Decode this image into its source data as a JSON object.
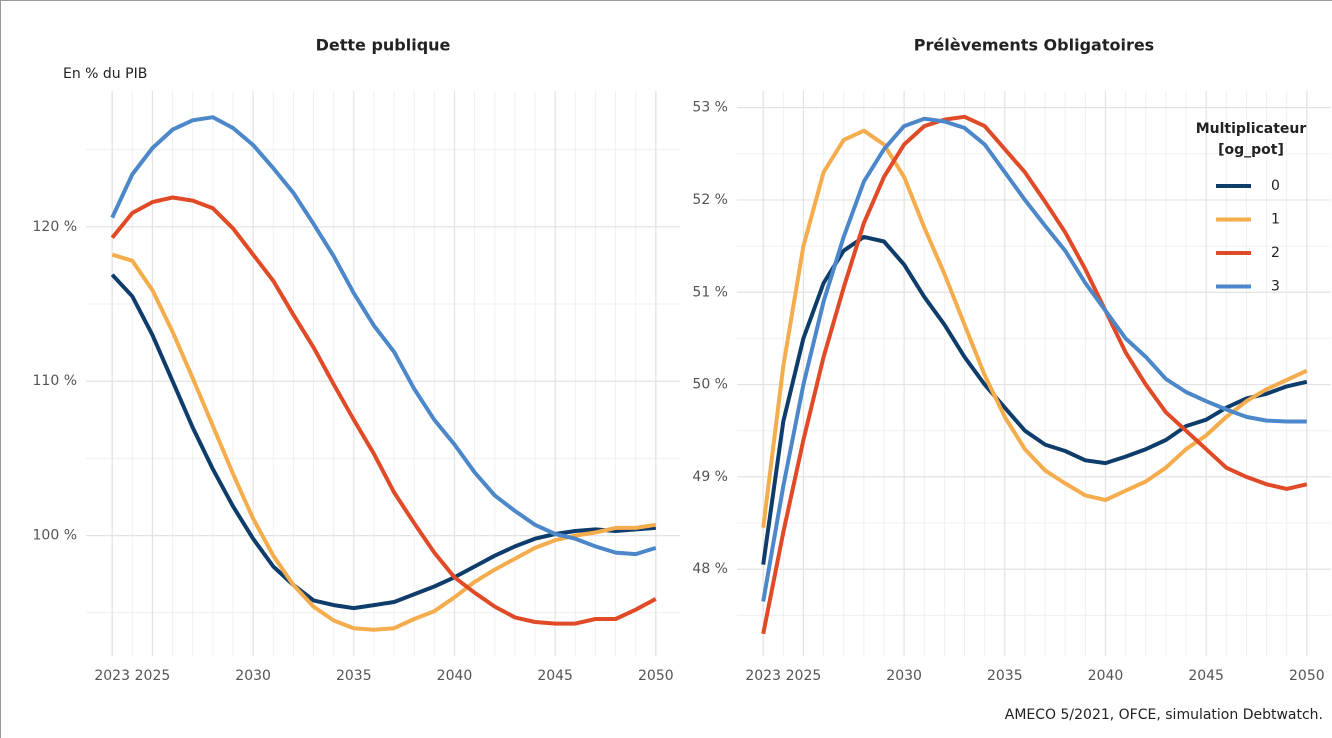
{
  "chart_data": [
    {
      "type": "line",
      "title": "Dette publique",
      "y_label": "En % du PIB",
      "x": [
        2023,
        2024,
        2025,
        2026,
        2027,
        2028,
        2029,
        2030,
        2031,
        2032,
        2033,
        2034,
        2035,
        2036,
        2037,
        2038,
        2039,
        2040,
        2041,
        2042,
        2043,
        2044,
        2045,
        2046,
        2047,
        2048,
        2049,
        2050
      ],
      "xlim": [
        2021.7,
        2051.2
      ],
      "xticks": [
        2023,
        2025,
        2030,
        2035,
        2040,
        2045,
        2050
      ],
      "ylim": [
        92.2,
        128.8
      ],
      "yticks": [
        {
          "value": 100,
          "label": "100 %"
        },
        {
          "value": 110,
          "label": "110 %"
        },
        {
          "value": 120,
          "label": "120 %"
        }
      ],
      "yminorticks": [
        95,
        105,
        115,
        125
      ],
      "grid": true,
      "legend": false,
      "series": [
        {
          "name": "0",
          "color": "#0e3d6b",
          "values": [
            116.9,
            115.5,
            113.0,
            110.0,
            107.0,
            104.3,
            101.9,
            99.8,
            98.0,
            96.8,
            95.8,
            95.5,
            95.3,
            95.5,
            95.7,
            96.2,
            96.7,
            97.3,
            98.0,
            98.7,
            99.3,
            99.8,
            100.1,
            100.3,
            100.4,
            100.3,
            100.4,
            100.5
          ]
        },
        {
          "name": "1",
          "color": "#f5ac4c",
          "values": [
            118.2,
            117.8,
            115.9,
            113.2,
            110.2,
            107.1,
            104.0,
            101.1,
            98.7,
            96.8,
            95.4,
            94.5,
            94.0,
            93.9,
            94.0,
            94.6,
            95.1,
            96.0,
            97.0,
            97.8,
            98.5,
            99.2,
            99.7,
            100.0,
            100.2,
            100.5,
            100.5,
            100.7
          ]
        },
        {
          "name": "2",
          "color": "#e04a26",
          "values": [
            119.3,
            120.9,
            121.6,
            121.9,
            121.7,
            121.2,
            119.9,
            118.2,
            116.5,
            114.3,
            112.2,
            109.8,
            107.5,
            105.3,
            102.8,
            100.8,
            98.9,
            97.3,
            96.3,
            95.4,
            94.7,
            94.4,
            94.3,
            94.3,
            94.6,
            94.6,
            95.2,
            95.9
          ]
        },
        {
          "name": "3",
          "color": "#4c87c9",
          "values": [
            120.6,
            123.4,
            125.1,
            126.3,
            126.9,
            127.1,
            126.4,
            125.3,
            123.8,
            122.2,
            120.2,
            118.1,
            115.7,
            113.6,
            111.9,
            109.5,
            107.5,
            105.9,
            104.1,
            102.6,
            101.6,
            100.7,
            100.1,
            99.8,
            99.3,
            98.9,
            98.8,
            99.2
          ]
        }
      ]
    },
    {
      "type": "line",
      "title": "Prélèvements Obligatoires",
      "x": [
        2023,
        2024,
        2025,
        2026,
        2027,
        2028,
        2029,
        2030,
        2031,
        2032,
        2033,
        2034,
        2035,
        2036,
        2037,
        2038,
        2039,
        2040,
        2041,
        2042,
        2043,
        2044,
        2045,
        2046,
        2047,
        2048,
        2049,
        2050
      ],
      "xlim": [
        2021.7,
        2051.2
      ],
      "xticks": [
        2023,
        2025,
        2030,
        2035,
        2040,
        2045,
        2050
      ],
      "ylim": [
        47.06,
        53.18
      ],
      "yticks": [
        {
          "value": 48,
          "label": "48 %"
        },
        {
          "value": 49,
          "label": "49 %"
        },
        {
          "value": 50,
          "label": "50 %"
        },
        {
          "value": 51,
          "label": "51 %"
        },
        {
          "value": 52,
          "label": "52 %"
        },
        {
          "value": 53,
          "label": "53 %"
        }
      ],
      "yminorticks": [
        47.5,
        48.5,
        49.5,
        50.5,
        51.5,
        52.5
      ],
      "grid": true,
      "legend": "top-right",
      "legend_title": [
        "Multiplicateur",
        "[og_pot]"
      ],
      "series": [
        {
          "name": "0",
          "color": "#0e3d6b",
          "values": [
            48.05,
            49.6,
            50.5,
            51.1,
            51.45,
            51.6,
            51.55,
            51.3,
            50.95,
            50.65,
            50.3,
            50.0,
            49.75,
            49.5,
            49.35,
            49.28,
            49.18,
            49.15,
            49.22,
            49.3,
            49.4,
            49.55,
            49.62,
            49.75,
            49.85,
            49.9,
            49.98,
            50.03
          ]
        },
        {
          "name": "1",
          "color": "#f5ac4c",
          "values": [
            48.45,
            50.2,
            51.5,
            52.3,
            52.65,
            52.75,
            52.6,
            52.25,
            51.7,
            51.2,
            50.65,
            50.1,
            49.65,
            49.3,
            49.07,
            48.93,
            48.8,
            48.75,
            48.85,
            48.95,
            49.1,
            49.3,
            49.45,
            49.65,
            49.82,
            49.95,
            50.05,
            50.15
          ]
        },
        {
          "name": "2",
          "color": "#e04a26",
          "values": [
            47.3,
            48.4,
            49.4,
            50.3,
            51.05,
            51.75,
            52.25,
            52.6,
            52.8,
            52.87,
            52.9,
            52.8,
            52.55,
            52.3,
            51.98,
            51.65,
            51.25,
            50.8,
            50.35,
            50.0,
            49.7,
            49.5,
            49.3,
            49.1,
            49.0,
            48.92,
            48.87,
            48.92
          ]
        },
        {
          "name": "3",
          "color": "#4c87c9",
          "values": [
            47.65,
            48.9,
            50.0,
            50.9,
            51.6,
            52.2,
            52.55,
            52.8,
            52.88,
            52.85,
            52.78,
            52.6,
            52.3,
            52.0,
            51.72,
            51.45,
            51.1,
            50.8,
            50.5,
            50.3,
            50.06,
            49.92,
            49.82,
            49.73,
            49.65,
            49.61,
            49.6,
            49.6
          ]
        }
      ]
    }
  ],
  "caption": "AMECO 5/2021, OFCE, simulation Debtwatch."
}
